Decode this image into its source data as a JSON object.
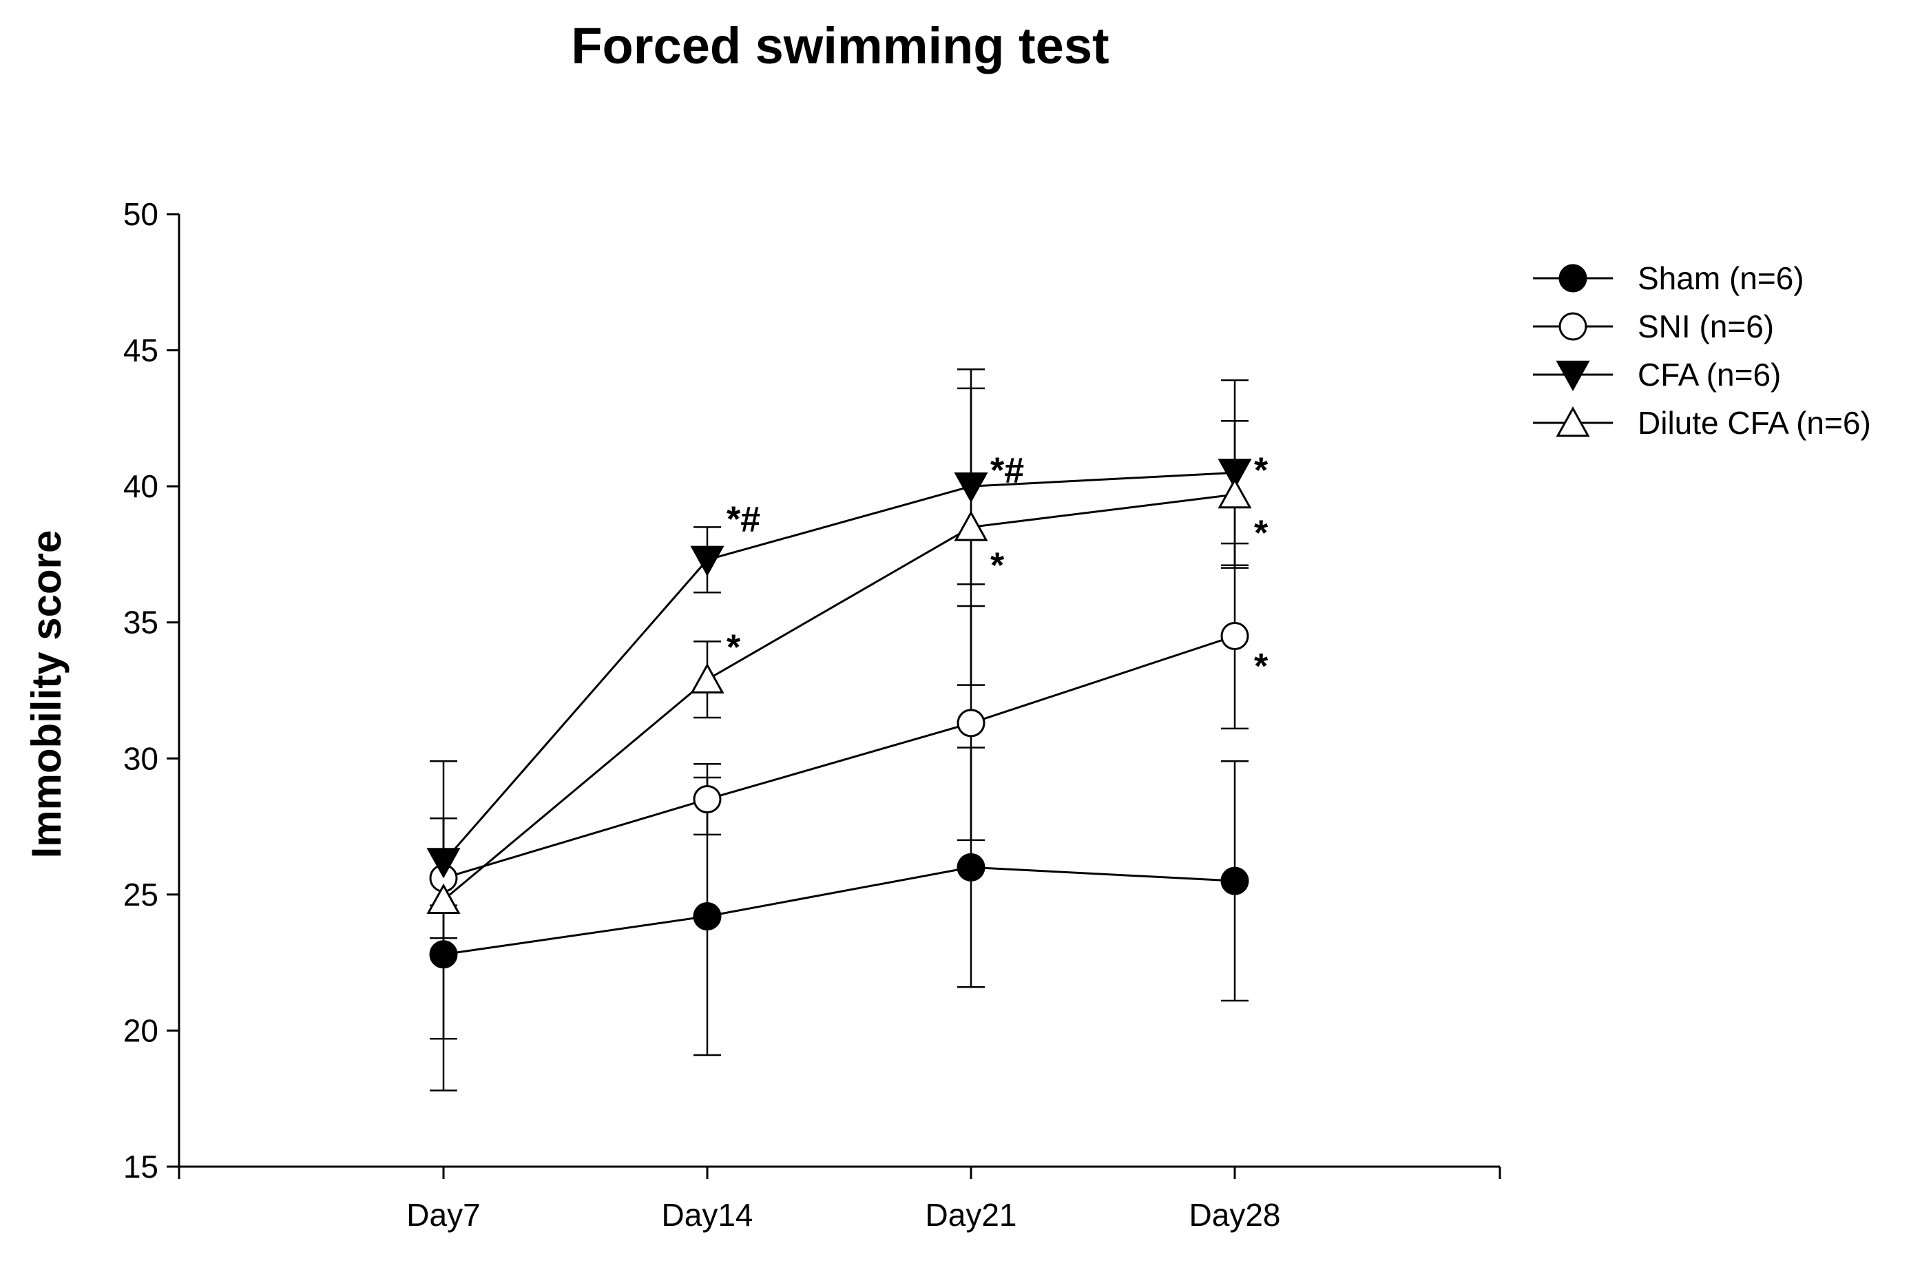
{
  "chart_data": {
    "type": "line",
    "title": "Forced swimming test",
    "xlabel": "",
    "ylabel": "Immobility score",
    "categories": [
      "Day7",
      "Day14",
      "Day21",
      "Day28"
    ],
    "ylim": [
      15,
      50
    ],
    "yticks": [
      15,
      20,
      25,
      30,
      35,
      40,
      45,
      50
    ],
    "ytick_labels": [
      "15",
      "20",
      "25",
      "30",
      "35",
      "40",
      "45",
      "50"
    ],
    "grid": false,
    "legend_position": "top-right",
    "series": [
      {
        "name": "Sham (n=6)",
        "marker": "circle-filled",
        "values": [
          22.8,
          24.2,
          26.0,
          25.5
        ],
        "errors": [
          5.0,
          5.1,
          4.4,
          4.4
        ]
      },
      {
        "name": "SNI (n=6)",
        "marker": "circle-open",
        "values": [
          25.6,
          28.5,
          31.3,
          34.5
        ],
        "errors": [
          2.2,
          1.3,
          4.3,
          3.4
        ]
      },
      {
        "name": "CFA (n=6)",
        "marker": "triangle-down-filled",
        "values": [
          26.2,
          37.3,
          40.0,
          40.5
        ],
        "errors": [
          1.6,
          1.2,
          3.6,
          3.4
        ]
      },
      {
        "name": "Dilute CFA (n=6)",
        "marker": "triangle-up-open",
        "values": [
          24.8,
          32.9,
          38.5,
          39.7
        ],
        "errors": [
          5.1,
          1.4,
          5.8,
          2.7
        ]
      }
    ],
    "annotations": [
      {
        "text": "*#",
        "category": "Day14",
        "value": 38.8
      },
      {
        "text": "*",
        "category": "Day14",
        "value": 34.1
      },
      {
        "text": "*#",
        "category": "Day21",
        "value": 40.6
      },
      {
        "text": "*",
        "category": "Day21",
        "value": 37.1
      },
      {
        "text": "*",
        "category": "Day28",
        "value": 40.6
      },
      {
        "text": "*",
        "category": "Day28",
        "value": 38.3
      },
      {
        "text": "*",
        "category": "Day28",
        "value": 33.4
      }
    ]
  }
}
